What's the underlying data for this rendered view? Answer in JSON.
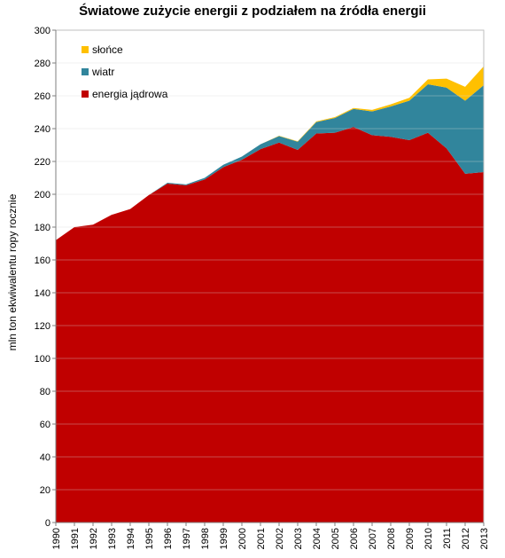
{
  "chart_data": {
    "type": "area",
    "stacked": true,
    "title": "Światowe zużycie energii z podziałem na źródła energii",
    "xlabel": "",
    "ylabel": "mln ton ekwiwalentu ropy rocznie",
    "ylim": [
      0,
      300
    ],
    "ytick_step": 20,
    "grid": true,
    "legend_position": "top-left",
    "x": [
      "1990",
      "1991",
      "1992",
      "1993",
      "1994",
      "1995",
      "1996",
      "1997",
      "1998",
      "1999",
      "2000",
      "2001",
      "2002",
      "2003",
      "2004",
      "2005",
      "2006",
      "2007",
      "2008",
      "2009",
      "2010",
      "2011",
      "2012",
      "2013"
    ],
    "series": [
      {
        "name": "energia jądrowa",
        "color": "#C00000",
        "values": [
          172,
          180,
          181.5,
          187.5,
          191,
          199.5,
          206.5,
          205.5,
          209,
          216.5,
          221,
          227.5,
          231.5,
          227,
          237,
          237.5,
          241,
          236,
          235,
          233,
          237.5,
          228,
          212.5,
          213.5
        ]
      },
      {
        "name": "wiatr",
        "color": "#31859C",
        "values": [
          0,
          0,
          0,
          0,
          0,
          0,
          0.5,
          0.5,
          1,
          1.5,
          2,
          3,
          4,
          5,
          7,
          9,
          11,
          14.5,
          18.5,
          24,
          29.5,
          37,
          44.5,
          53
        ]
      },
      {
        "name": "słońce",
        "color": "#FFC000",
        "values": [
          0,
          0,
          0,
          0,
          0,
          0,
          0,
          0,
          0,
          0,
          0,
          0,
          0.2,
          0.3,
          0.4,
          0.5,
          0.6,
          0.9,
          1.3,
          1.8,
          3,
          5.5,
          8.5,
          11.5
        ]
      }
    ]
  }
}
